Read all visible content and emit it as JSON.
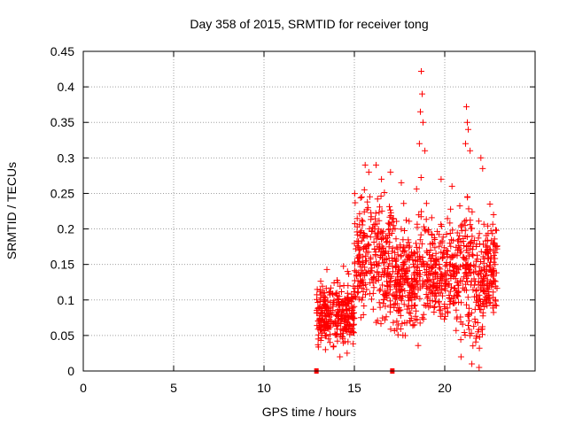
{
  "chart_data": {
    "type": "scatter",
    "title": "Day 358 of 2015, SRMTID for receiver tong",
    "xlabel": "GPS time / hours",
    "ylabel": "SRMTID / TECUs",
    "xlim": [
      0,
      25
    ],
    "ylim": [
      0,
      0.45
    ],
    "x_ticks": [
      0,
      5,
      10,
      15,
      20
    ],
    "x_tick_labels": [
      "0",
      "5",
      "10",
      "15",
      "20"
    ],
    "y_ticks": [
      0,
      0.05,
      0.1,
      0.15,
      0.2,
      0.25,
      0.3,
      0.35,
      0.4,
      0.45
    ],
    "y_tick_labels": [
      "0",
      "0.05",
      "0.1",
      "0.15",
      "0.2",
      "0.25",
      "0.3",
      "0.35",
      "0.4",
      "0.45"
    ],
    "grid": true,
    "marker": "+",
    "color": "#ff0000",
    "baseline_markers": [
      12.9,
      17.1
    ],
    "series": [
      {
        "name": "SRMTID",
        "x_range": [
          12.9,
          22.9
        ],
        "point_count": 1400,
        "notes": "dense cloud; 0.03-0.15 for 13-15h, 0.05-0.3 afterwards, peaks near 0.42 at 18.7h and 0.37 at 21.2h"
      }
    ]
  }
}
